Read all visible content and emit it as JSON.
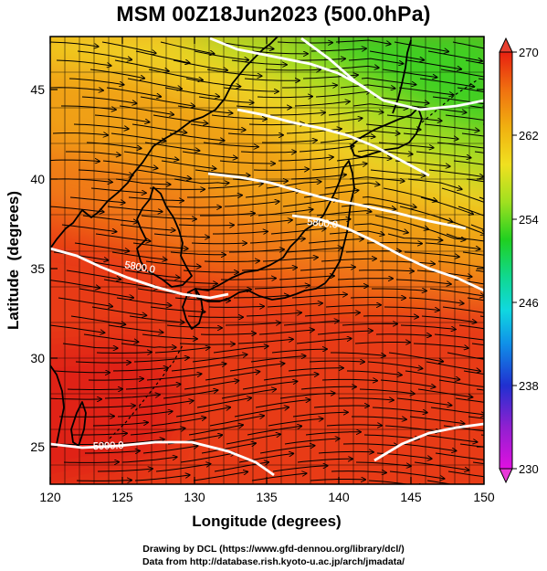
{
  "title": "MSM 00Z18Jun2023 (500.0hPa)",
  "map": {
    "xlabel": "Longitude (degrees)",
    "ylabel": "Latitude  (degrees)",
    "xlim": [
      120,
      150
    ],
    "ylim": [
      22.6,
      47.6
    ],
    "xticks": [
      "120",
      "125",
      "130",
      "135",
      "140",
      "145",
      "150"
    ],
    "yticks": [
      "25",
      "30",
      "35",
      "40",
      "45"
    ],
    "contours": [
      {
        "label": "5800.0"
      },
      {
        "label": "5800.0"
      },
      {
        "label": "5900.0"
      }
    ]
  },
  "colorbar": {
    "ticks": [
      "270",
      "262",
      "254",
      "246",
      "238",
      "230"
    ],
    "min": 230,
    "max": 270,
    "colors": [
      "#e010e0",
      "#9020d0",
      "#2030d0",
      "#1090e8",
      "#10d8e0",
      "#10d890",
      "#20d020",
      "#a0e020",
      "#f0e020",
      "#f0b010",
      "#f07010",
      "#e82010"
    ]
  },
  "credits": {
    "line1": "Drawing by DCL (https://www.gfd-dennou.org/library/dcl/)",
    "line2": "Data from http://database.rish.kyoto-u.ac.jp/arch/jmadata/"
  }
}
